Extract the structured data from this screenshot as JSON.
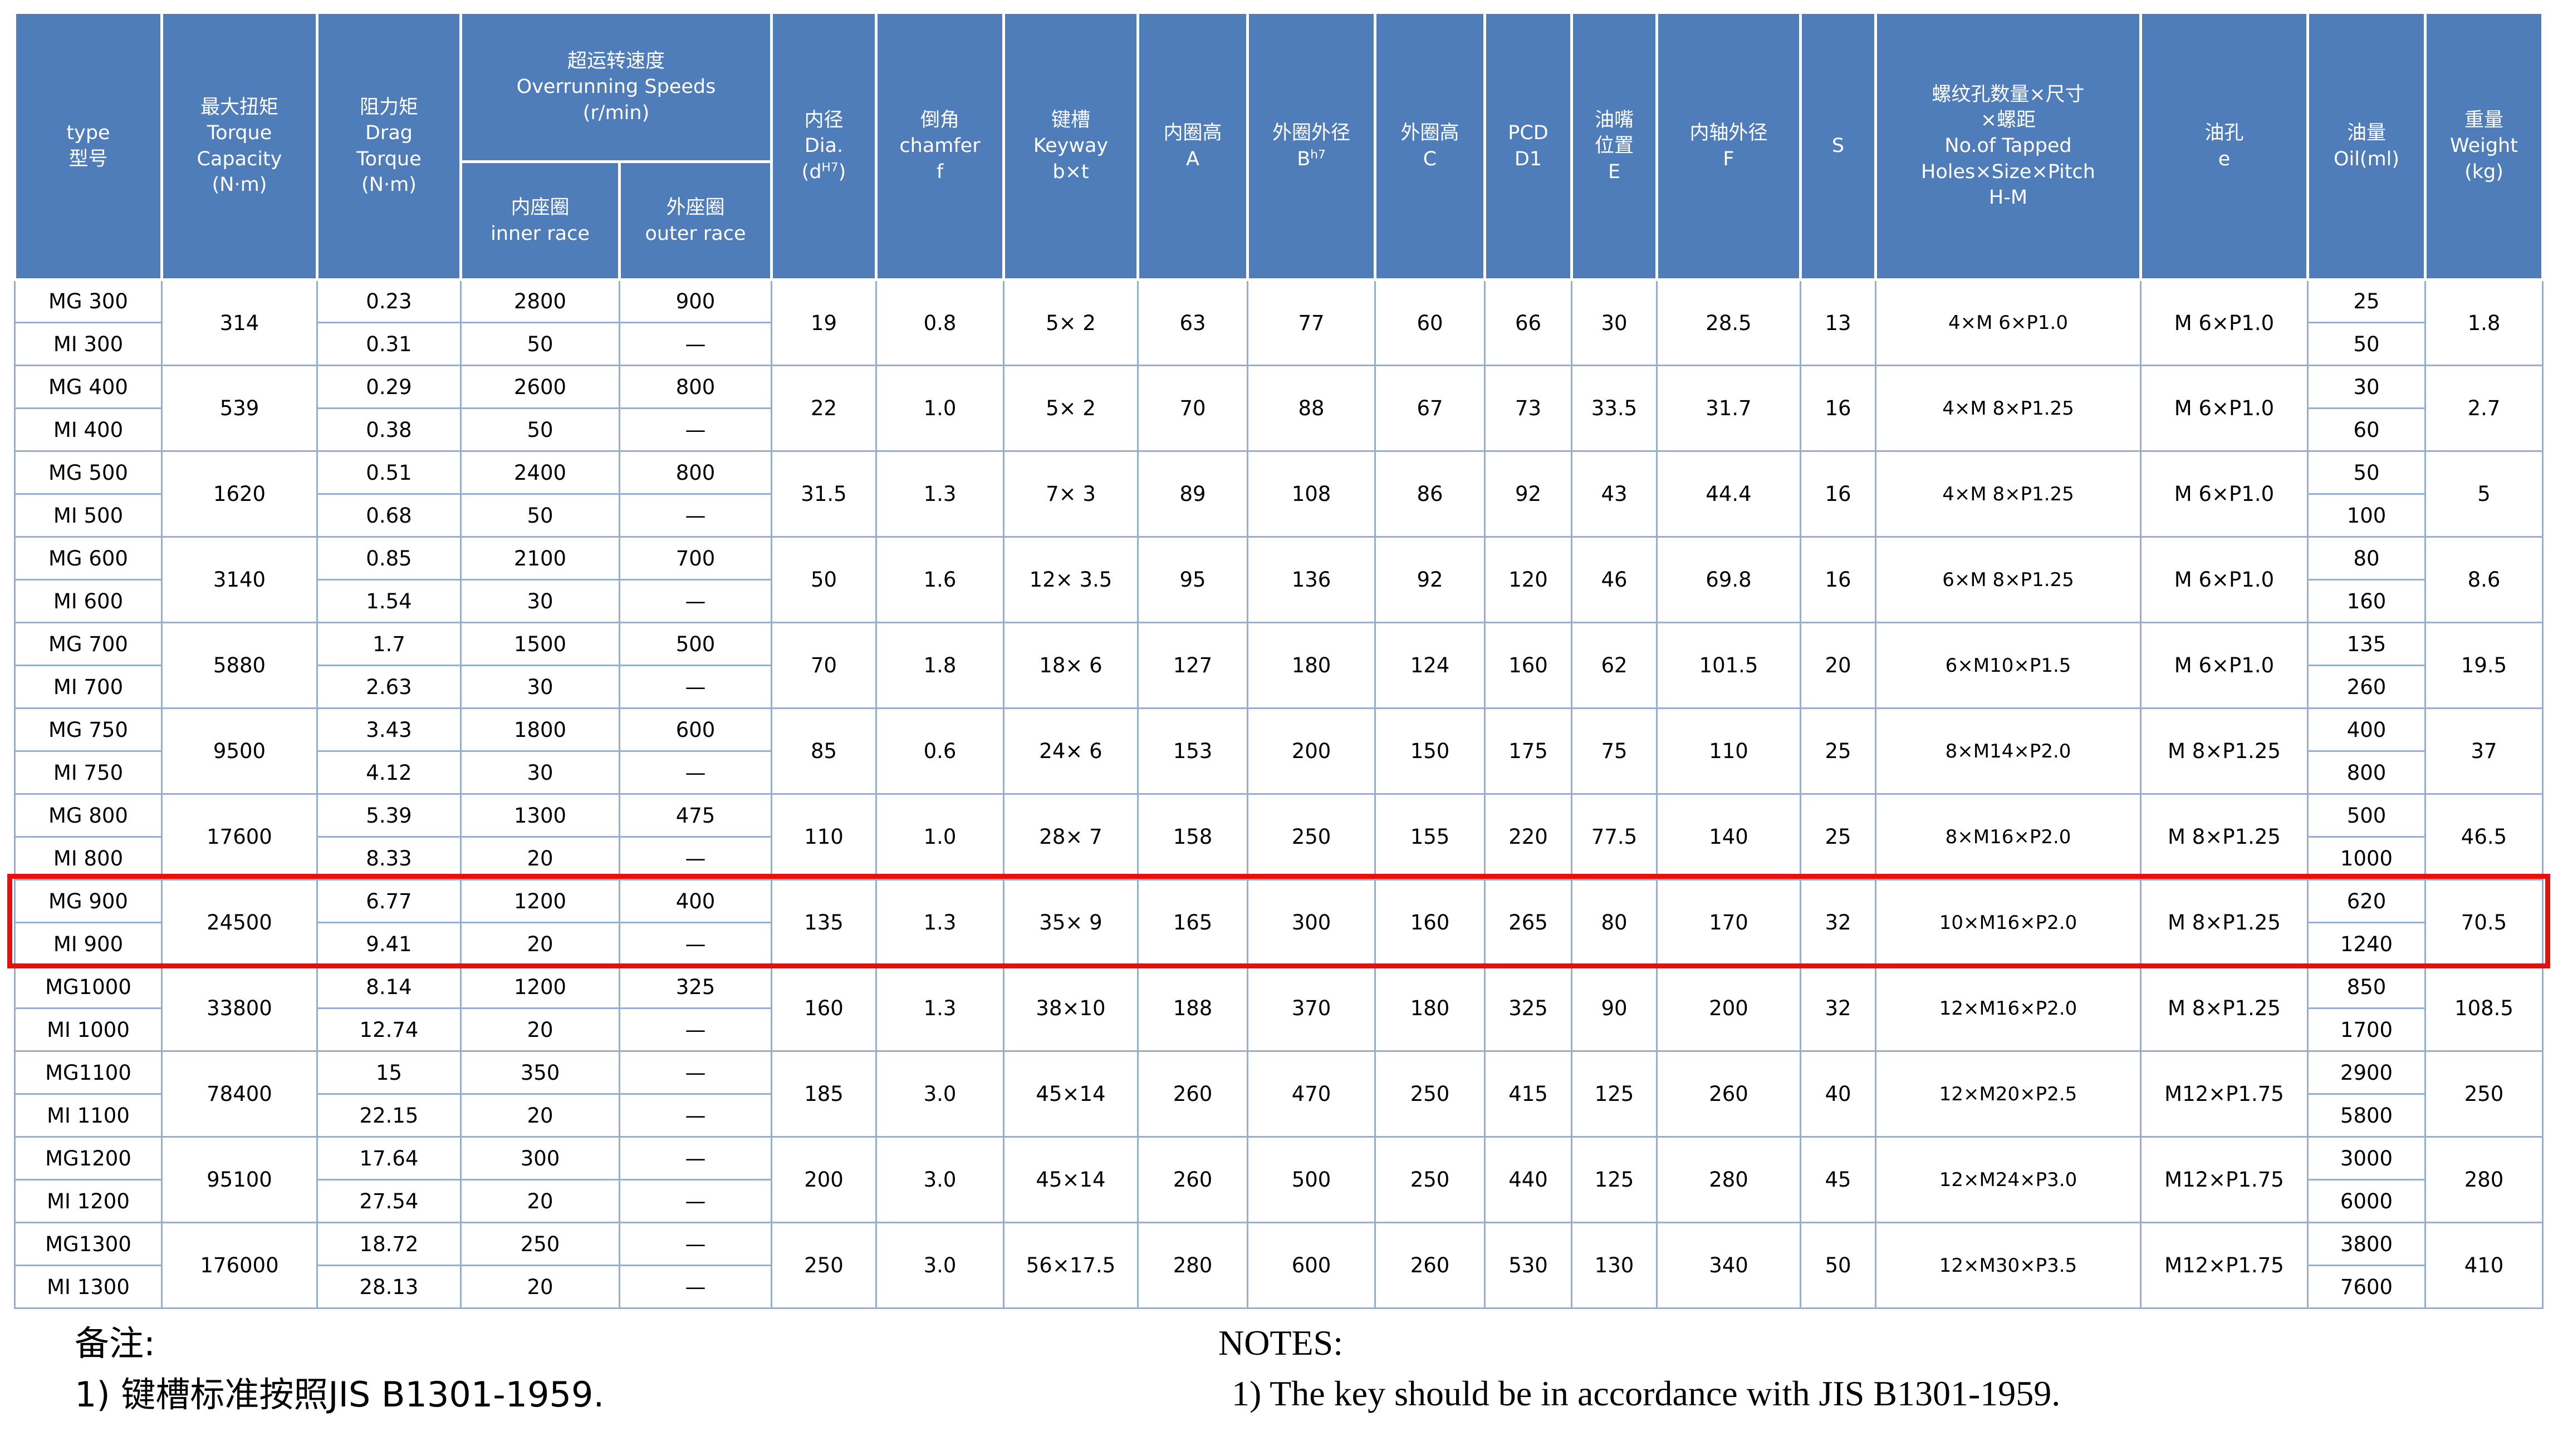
{
  "title": "MG / MI cam clutch specification table",
  "colors": {
    "header-bg": "#4f7dba",
    "header-text": "#ffffff",
    "grid-line": "#96aed0",
    "highlight": "#e8100c"
  },
  "header": {
    "type": "type\n型号",
    "torque": "最大扭矩\nTorque\nCapacity\n(N·m)",
    "drag": "阻力矩\nDrag\nTorque\n(N·m)",
    "overrunning": "超运转速度\nOverrunning Speeds\n(r/min)",
    "inner_race": "内座圈\ninner race",
    "outer_race": "外座圈\nouter race",
    "dia_prefix": "内径\nDia.\n(d",
    "dia_sup": "H7",
    "dia_suffix": ")",
    "chamfer": "倒角\nchamfer\nf",
    "keyway": "键槽\nKeyway\nb×t",
    "inner_ring_height": "内圈高\nA",
    "outer_ring_dia_prefix": "外圈外径\nB",
    "outer_ring_dia_sup": "h7",
    "outer_ring_height": "外圈高\nC",
    "pcd": "PCD\nD1",
    "oil_nipple": "油嘴\n位置\nE",
    "inner_shaft_dia": "内轴外径\nF",
    "s": "S",
    "tapped_holes": "螺纹孔数量×尺寸\n×螺距\nNo.of Tapped\nHoles×Size×Pitch\nH-M",
    "oil_hole": "油孔\ne",
    "oil_quantity": "油量\nOil(ml)",
    "weight": "重量\nWeight\n(kg)"
  },
  "rows": [
    {
      "type_top": "MG 300",
      "type_bottom": "MI 300",
      "torque": "314",
      "drag_top": "0.23",
      "drag_bottom": "0.31",
      "inner_top": "2800",
      "inner_bottom": "50",
      "outer_top": "900",
      "outer_bottom": "—",
      "dia": "19",
      "chamfer": "0.8",
      "keyway": "5× 2",
      "a": "63",
      "b": "77",
      "c": "60",
      "d1": "66",
      "e": "30",
      "f": "28.5",
      "s": "13",
      "tapped": "4×M 6×P1.0",
      "oil_hole": "M 6×P1.0",
      "oil_top": "25",
      "oil_bottom": "50",
      "weight": "1.8",
      "highlight": false
    },
    {
      "type_top": "MG 400",
      "type_bottom": "MI 400",
      "torque": "539",
      "drag_top": "0.29",
      "drag_bottom": "0.38",
      "inner_top": "2600",
      "inner_bottom": "50",
      "outer_top": "800",
      "outer_bottom": "—",
      "dia": "22",
      "chamfer": "1.0",
      "keyway": "5× 2",
      "a": "70",
      "b": "88",
      "c": "67",
      "d1": "73",
      "e": "33.5",
      "f": "31.7",
      "s": "16",
      "tapped": "4×M 8×P1.25",
      "oil_hole": "M 6×P1.0",
      "oil_top": "30",
      "oil_bottom": "60",
      "weight": "2.7",
      "highlight": false
    },
    {
      "type_top": "MG 500",
      "type_bottom": "MI 500",
      "torque": "1620",
      "drag_top": "0.51",
      "drag_bottom": "0.68",
      "inner_top": "2400",
      "inner_bottom": "50",
      "outer_top": "800",
      "outer_bottom": "—",
      "dia": "31.5",
      "chamfer": "1.3",
      "keyway": "7× 3",
      "a": "89",
      "b": "108",
      "c": "86",
      "d1": "92",
      "e": "43",
      "f": "44.4",
      "s": "16",
      "tapped": "4×M 8×P1.25",
      "oil_hole": "M 6×P1.0",
      "oil_top": "50",
      "oil_bottom": "100",
      "weight": "5",
      "highlight": false
    },
    {
      "type_top": "MG 600",
      "type_bottom": "MI 600",
      "torque": "3140",
      "drag_top": "0.85",
      "drag_bottom": "1.54",
      "inner_top": "2100",
      "inner_bottom": "30",
      "outer_top": "700",
      "outer_bottom": "—",
      "dia": "50",
      "chamfer": "1.6",
      "keyway": "12× 3.5",
      "a": "95",
      "b": "136",
      "c": "92",
      "d1": "120",
      "e": "46",
      "f": "69.8",
      "s": "16",
      "tapped": "6×M 8×P1.25",
      "oil_hole": "M 6×P1.0",
      "oil_top": "80",
      "oil_bottom": "160",
      "weight": "8.6",
      "highlight": false
    },
    {
      "type_top": "MG 700",
      "type_bottom": "MI 700",
      "torque": "5880",
      "drag_top": "1.7",
      "drag_bottom": "2.63",
      "inner_top": "1500",
      "inner_bottom": "30",
      "outer_top": "500",
      "outer_bottom": "—",
      "dia": "70",
      "chamfer": "1.8",
      "keyway": "18× 6",
      "a": "127",
      "b": "180",
      "c": "124",
      "d1": "160",
      "e": "62",
      "f": "101.5",
      "s": "20",
      "tapped": "6×M10×P1.5",
      "oil_hole": "M 6×P1.0",
      "oil_top": "135",
      "oil_bottom": "260",
      "weight": "19.5",
      "highlight": false
    },
    {
      "type_top": "MG 750",
      "type_bottom": "MI 750",
      "torque": "9500",
      "drag_top": "3.43",
      "drag_bottom": "4.12",
      "inner_top": "1800",
      "inner_bottom": "30",
      "outer_top": "600",
      "outer_bottom": "—",
      "dia": "85",
      "chamfer": "0.6",
      "keyway": "24× 6",
      "a": "153",
      "b": "200",
      "c": "150",
      "d1": "175",
      "e": "75",
      "f": "110",
      "s": "25",
      "tapped": "8×M14×P2.0",
      "oil_hole": "M 8×P1.25",
      "oil_top": "400",
      "oil_bottom": "800",
      "weight": "37",
      "highlight": false
    },
    {
      "type_top": "MG 800",
      "type_bottom": "MI 800",
      "torque": "17600",
      "drag_top": "5.39",
      "drag_bottom": "8.33",
      "inner_top": "1300",
      "inner_bottom": "20",
      "outer_top": "475",
      "outer_bottom": "—",
      "dia": "110",
      "chamfer": "1.0",
      "keyway": "28× 7",
      "a": "158",
      "b": "250",
      "c": "155",
      "d1": "220",
      "e": "77.5",
      "f": "140",
      "s": "25",
      "tapped": "8×M16×P2.0",
      "oil_hole": "M 8×P1.25",
      "oil_top": "500",
      "oil_bottom": "1000",
      "weight": "46.5",
      "highlight": false
    },
    {
      "type_top": "MG 900",
      "type_bottom": "MI 900",
      "torque": "24500",
      "drag_top": "6.77",
      "drag_bottom": "9.41",
      "inner_top": "1200",
      "inner_bottom": "20",
      "outer_top": "400",
      "outer_bottom": "—",
      "dia": "135",
      "chamfer": "1.3",
      "keyway": "35× 9",
      "a": "165",
      "b": "300",
      "c": "160",
      "d1": "265",
      "e": "80",
      "f": "170",
      "s": "32",
      "tapped": "10×M16×P2.0",
      "oil_hole": "M 8×P1.25",
      "oil_top": "620",
      "oil_bottom": "1240",
      "weight": "70.5",
      "highlight": true
    },
    {
      "type_top": "MG1000",
      "type_bottom": "MI 1000",
      "torque": "33800",
      "drag_top": "8.14",
      "drag_bottom": "12.74",
      "inner_top": "1200",
      "inner_bottom": "20",
      "outer_top": "325",
      "outer_bottom": "—",
      "dia": "160",
      "chamfer": "1.3",
      "keyway": "38×10",
      "a": "188",
      "b": "370",
      "c": "180",
      "d1": "325",
      "e": "90",
      "f": "200",
      "s": "32",
      "tapped": "12×M16×P2.0",
      "oil_hole": "M 8×P1.25",
      "oil_top": "850",
      "oil_bottom": "1700",
      "weight": "108.5",
      "highlight": false
    },
    {
      "type_top": "MG1100",
      "type_bottom": "MI 1100",
      "torque": "78400",
      "drag_top": "15",
      "drag_bottom": "22.15",
      "inner_top": "350",
      "inner_bottom": "20",
      "outer_top": "—",
      "outer_bottom": "—",
      "dia": "185",
      "chamfer": "3.0",
      "keyway": "45×14",
      "a": "260",
      "b": "470",
      "c": "250",
      "d1": "415",
      "e": "125",
      "f": "260",
      "s": "40",
      "tapped": "12×M20×P2.5",
      "oil_hole": "M12×P1.75",
      "oil_top": "2900",
      "oil_bottom": "5800",
      "weight": "250",
      "highlight": false
    },
    {
      "type_top": "MG1200",
      "type_bottom": "MI 1200",
      "torque": "95100",
      "drag_top": "17.64",
      "drag_bottom": "27.54",
      "inner_top": "300",
      "inner_bottom": "20",
      "outer_top": "—",
      "outer_bottom": "—",
      "dia": "200",
      "chamfer": "3.0",
      "keyway": "45×14",
      "a": "260",
      "b": "500",
      "c": "250",
      "d1": "440",
      "e": "125",
      "f": "280",
      "s": "45",
      "tapped": "12×M24×P3.0",
      "oil_hole": "M12×P1.75",
      "oil_top": "3000",
      "oil_bottom": "6000",
      "weight": "280",
      "highlight": false
    },
    {
      "type_top": "MG1300",
      "type_bottom": "MI 1300",
      "torque": "176000",
      "drag_top": "18.72",
      "drag_bottom": "28.13",
      "inner_top": "250",
      "inner_bottom": "20",
      "outer_top": "—",
      "outer_bottom": "—",
      "dia": "250",
      "chamfer": "3.0",
      "keyway": "56×17.5",
      "a": "280",
      "b": "600",
      "c": "260",
      "d1": "530",
      "e": "130",
      "f": "340",
      "s": "50",
      "tapped": "12×M30×P3.5",
      "oil_hole": "M12×P1.75",
      "oil_top": "3800",
      "oil_bottom": "7600",
      "weight": "410",
      "highlight": false
    }
  ],
  "notes": {
    "zh_title": "备注:",
    "zh_item": "1) 键槽标准按照JIS B1301-1959.",
    "en_title": "NOTES:",
    "en_item": "1) The key should be in accordance with JIS B1301-1959."
  }
}
